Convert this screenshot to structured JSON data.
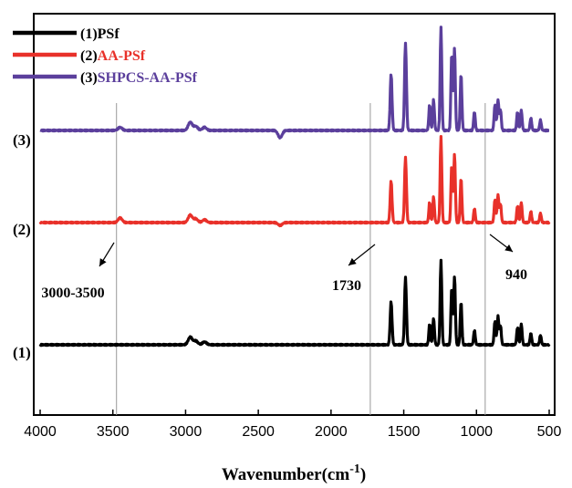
{
  "chart_data": {
    "type": "line",
    "xlabel": "Wavenumber(cm",
    "xlabel_sup": "-1",
    "xlabel_close": ")",
    "ylabel": "",
    "xlim": [
      4000,
      500
    ],
    "x_reversed": true,
    "xticks": [
      4000,
      3500,
      3000,
      2500,
      2000,
      1500,
      1000,
      500
    ],
    "grid": false,
    "legend_position": "top-left",
    "series": [
      {
        "legend_prefix": "(1)",
        "legend_name": "PSf",
        "curve_label": "(1)",
        "color": "#000000",
        "peaks": [
          [
            1587,
            0.45
          ],
          [
            1488,
            0.7
          ],
          [
            1322,
            0.22
          ],
          [
            1295,
            0.28
          ],
          [
            1244,
            0.88
          ],
          [
            1170,
            0.6
          ],
          [
            1151,
            0.72
          ],
          [
            1106,
            0.45
          ],
          [
            1014,
            0.15
          ],
          [
            873,
            0.25
          ],
          [
            852,
            0.3
          ],
          [
            835,
            0.2
          ],
          [
            718,
            0.18
          ],
          [
            692,
            0.22
          ],
          [
            626,
            0.12
          ],
          [
            560,
            0.1
          ],
          [
            2968,
            0.08
          ],
          [
            2930,
            0.04
          ],
          [
            2870,
            0.03
          ]
        ]
      },
      {
        "legend_prefix": "(2)",
        "legend_name": "AA-PSf",
        "curve_label": "(2)",
        "color": "#e8312a",
        "peaks": [
          [
            1587,
            0.45
          ],
          [
            1488,
            0.7
          ],
          [
            1322,
            0.22
          ],
          [
            1295,
            0.28
          ],
          [
            1244,
            0.92
          ],
          [
            1170,
            0.62
          ],
          [
            1151,
            0.74
          ],
          [
            1106,
            0.48
          ],
          [
            1014,
            0.15
          ],
          [
            873,
            0.25
          ],
          [
            852,
            0.3
          ],
          [
            835,
            0.2
          ],
          [
            718,
            0.18
          ],
          [
            692,
            0.22
          ],
          [
            626,
            0.12
          ],
          [
            560,
            0.1
          ],
          [
            2968,
            0.08
          ],
          [
            2930,
            0.04
          ],
          [
            2870,
            0.03
          ],
          [
            3450,
            0.05
          ],
          [
            2350,
            -0.03
          ]
        ]
      },
      {
        "legend_prefix": "(3)",
        "legend_name": "SHPCS-AA-PSf",
        "curve_label": "(3)",
        "color": "#5b3f9c",
        "peaks": [
          [
            1587,
            0.55
          ],
          [
            1488,
            0.85
          ],
          [
            1322,
            0.25
          ],
          [
            1295,
            0.3
          ],
          [
            1244,
            1.0
          ],
          [
            1170,
            0.75
          ],
          [
            1151,
            0.8
          ],
          [
            1106,
            0.55
          ],
          [
            1014,
            0.18
          ],
          [
            873,
            0.25
          ],
          [
            852,
            0.3
          ],
          [
            835,
            0.2
          ],
          [
            718,
            0.18
          ],
          [
            692,
            0.2
          ],
          [
            626,
            0.12
          ],
          [
            560,
            0.1
          ],
          [
            2968,
            0.08
          ],
          [
            2930,
            0.04
          ],
          [
            2870,
            0.03
          ],
          [
            3450,
            0.03
          ],
          [
            2350,
            -0.07
          ]
        ]
      }
    ],
    "annotations": [
      {
        "label": "3000-3500",
        "x": 3475
      },
      {
        "label": "1730",
        "x": 1730
      },
      {
        "label": "940",
        "x": 940
      }
    ]
  }
}
